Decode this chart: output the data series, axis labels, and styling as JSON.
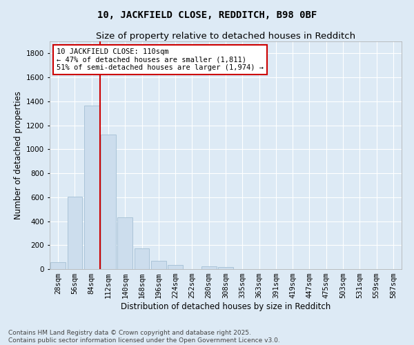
{
  "title": "10, JACKFIELD CLOSE, REDDITCH, B98 0BF",
  "subtitle": "Size of property relative to detached houses in Redditch",
  "xlabel": "Distribution of detached houses by size in Redditch",
  "ylabel": "Number of detached properties",
  "bar_color": "#ccdded",
  "bar_edge_color": "#aac4d8",
  "background_color": "#ddeaf5",
  "grid_color": "#ffffff",
  "annotation_box_color": "#cc0000",
  "vline_color": "#cc0000",
  "categories": [
    "28sqm",
    "56sqm",
    "84sqm",
    "112sqm",
    "140sqm",
    "168sqm",
    "196sqm",
    "224sqm",
    "252sqm",
    "280sqm",
    "308sqm",
    "335sqm",
    "363sqm",
    "391sqm",
    "419sqm",
    "447sqm",
    "475sqm",
    "503sqm",
    "531sqm",
    "559sqm",
    "587sqm"
  ],
  "values": [
    60,
    605,
    1365,
    1120,
    430,
    170,
    70,
    35,
    0,
    25,
    20,
    0,
    0,
    0,
    0,
    0,
    0,
    0,
    0,
    0,
    0
  ],
  "vline_pos": 2.5,
  "annotation_text": "10 JACKFIELD CLOSE: 110sqm\n← 47% of detached houses are smaller (1,811)\n51% of semi-detached houses are larger (1,974) →",
  "ylim": [
    0,
    1900
  ],
  "yticks": [
    0,
    200,
    400,
    600,
    800,
    1000,
    1200,
    1400,
    1600,
    1800
  ],
  "footer": "Contains HM Land Registry data © Crown copyright and database right 2025.\nContains public sector information licensed under the Open Government Licence v3.0.",
  "title_fontsize": 10,
  "subtitle_fontsize": 9.5,
  "axis_label_fontsize": 8.5,
  "tick_fontsize": 7.5,
  "annotation_fontsize": 7.5,
  "footer_fontsize": 6.5
}
